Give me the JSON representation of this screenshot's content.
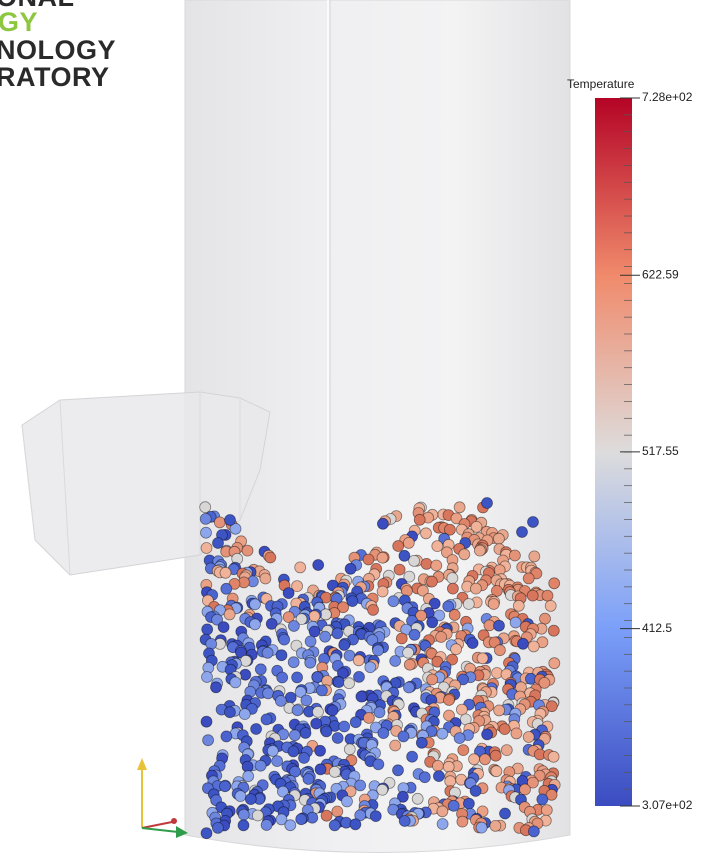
{
  "logo": {
    "lines": [
      "ONAL",
      "GY",
      "NOLOGY",
      "RATORY"
    ]
  },
  "colorbar": {
    "title": "Temperature",
    "ticks": [
      {
        "value": 728,
        "label": "7.28e+02"
      },
      622.59,
      517.55,
      412.5,
      {
        "value": 307,
        "label": "3.07e+02"
      }
    ]
  }
}
